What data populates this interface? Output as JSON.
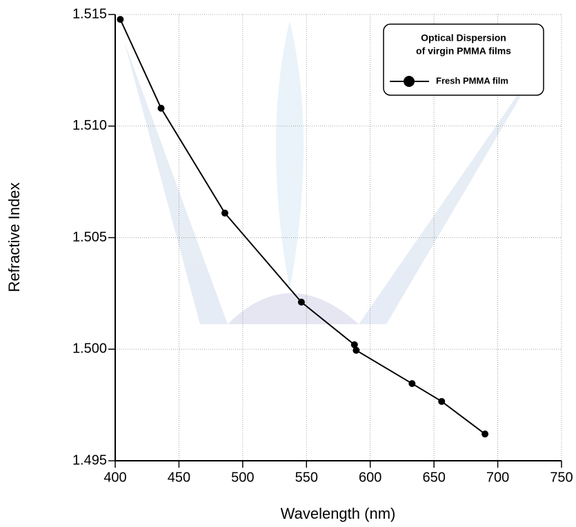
{
  "chart_data": {
    "type": "line",
    "x_label": "Wavelength   (nm)",
    "y_label": "Refractive Index",
    "legend_title": [
      "Optical Dispersion",
      "of virgin PMMA films"
    ],
    "legend_position": "upper right",
    "grid": true,
    "xlim": [
      400,
      750
    ],
    "xticks": [
      400,
      450,
      500,
      550,
      600,
      650,
      700,
      750
    ],
    "ylim": [
      1.495,
      1.515
    ],
    "yticks": [
      1.495,
      {
        "value": 1.5,
        "label": "1.500"
      },
      1.505,
      {
        "value": 1.51,
        "label": "1.510"
      },
      1.515
    ],
    "x": [
      404,
      436,
      486,
      546,
      587.6,
      589,
      632.8,
      656,
      690
    ],
    "series": [
      {
        "name": "Fresh PMMA film",
        "color": "#000000",
        "values": [
          1.51478,
          1.5108,
          1.5061,
          1.50211,
          1.5002,
          1.49995,
          1.49846,
          1.49766,
          1.4962
        ]
      }
    ]
  }
}
